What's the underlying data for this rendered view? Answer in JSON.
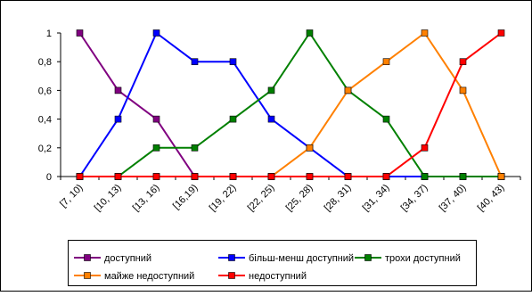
{
  "chart_data": {
    "type": "line",
    "categories": [
      "[7, 10)",
      "[10, 13)",
      "[13, 16)",
      "[16,19)",
      "[19, 22)",
      "[22, 25)",
      "[25, 28)",
      "[28, 31)",
      "[31, 34)",
      "[34, 37)",
      "[37, 40)",
      "[40, 43)"
    ],
    "y_ticks": [
      "0",
      "0,2",
      "0,4",
      "0,6",
      "0,8",
      "1"
    ],
    "ylim": [
      0,
      1
    ],
    "grid": false,
    "legend_position": "bottom",
    "series": [
      {
        "name": "доступний",
        "color": "#800080",
        "values": [
          1,
          0.6,
          0.4,
          0,
          0,
          0,
          0,
          0,
          0,
          0,
          0,
          0
        ]
      },
      {
        "name": "більш-менш доступний",
        "color": "#0000ff",
        "values": [
          0,
          0.4,
          1,
          0.8,
          0.8,
          0.4,
          0.2,
          0,
          0,
          0,
          0,
          0
        ]
      },
      {
        "name": "трохи доступний",
        "color": "#008000",
        "values": [
          0,
          0,
          0.2,
          0.2,
          0.4,
          0.6,
          1,
          0.6,
          0.4,
          0,
          0,
          0
        ]
      },
      {
        "name": "майже недоступний",
        "color": "#ff8000",
        "values": [
          0,
          0,
          0,
          0,
          0,
          0,
          0.2,
          0.6,
          0.8,
          1,
          0.6,
          0
        ]
      },
      {
        "name": "недоступний",
        "color": "#ff0000",
        "values": [
          0,
          0,
          0,
          0,
          0,
          0,
          0,
          0,
          0,
          0.2,
          0.8,
          1
        ]
      }
    ]
  }
}
